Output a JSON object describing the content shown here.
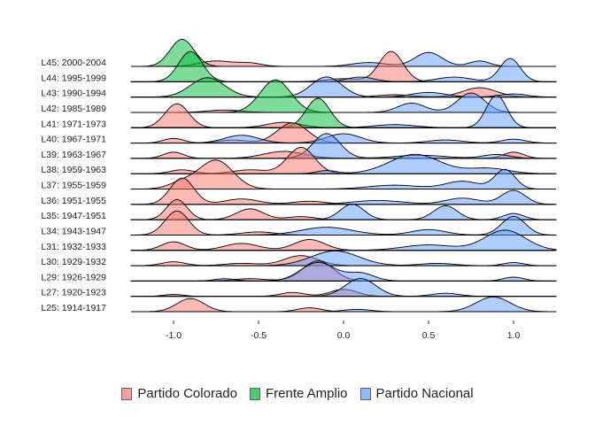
{
  "chart_data": {
    "type": "ridgeline",
    "title": "",
    "xlabel": "",
    "ylabel": "",
    "xlim": [
      -1.25,
      1.25
    ],
    "x_ticks": [
      -1.0,
      -0.5,
      0.0,
      0.5,
      1.0
    ],
    "x_tick_labels": [
      "-1.0",
      "-0.5",
      "0.0",
      "0.5",
      "1.0"
    ],
    "grid": false,
    "legend_position": "bottom",
    "series": [
      {
        "name": "Partido Colorado",
        "color": "#F8766D"
      },
      {
        "name": "Frente Amplio",
        "color": "#00BA38"
      },
      {
        "name": "Partido Nacional",
        "color": "#619CFF"
      }
    ],
    "rows": [
      {
        "label": "L25: 1914-1917",
        "densities": [
          {
            "party": "Partido Colorado",
            "peaks": [
              [
                -0.9,
                0.08,
                0.85
              ],
              [
                -0.2,
                0.07,
                0.25
              ]
            ]
          },
          {
            "party": "Partido Nacional",
            "peaks": [
              [
                0.08,
                0.08,
                0.15
              ],
              [
                0.88,
                0.1,
                0.95
              ]
            ]
          }
        ]
      },
      {
        "label": "L27: 1920-1923",
        "densities": [
          {
            "party": "Partido Colorado",
            "peaks": [
              [
                -1.0,
                0.06,
                0.12
              ],
              [
                -0.3,
                0.07,
                0.25
              ],
              [
                0.0,
                0.08,
                0.45
              ]
            ]
          },
          {
            "party": "Partido Nacional",
            "peaks": [
              [
                0.1,
                0.09,
                1.15
              ],
              [
                0.6,
                0.08,
                0.2
              ]
            ]
          }
        ]
      },
      {
        "label": "L29: 1926-1929",
        "densities": [
          {
            "party": "Partido Colorado",
            "peaks": [
              [
                -0.15,
                0.09,
                1.3
              ],
              [
                -0.55,
                0.1,
                0.15
              ]
            ]
          },
          {
            "party": "Partido Nacional",
            "peaks": [
              [
                -0.15,
                0.1,
                1.2
              ],
              [
                0.1,
                0.08,
                0.5
              ],
              [
                1.0,
                0.06,
                0.25
              ],
              [
                -0.7,
                0.06,
                0.15
              ]
            ]
          }
        ]
      },
      {
        "label": "L30: 1929-1932",
        "densities": [
          {
            "party": "Partido Colorado",
            "peaks": [
              [
                -1.0,
                0.07,
                0.25
              ],
              [
                -0.6,
                0.1,
                0.15
              ],
              [
                -0.25,
                0.1,
                0.65
              ]
            ]
          },
          {
            "party": "Partido Nacional",
            "peaks": [
              [
                -0.05,
                0.14,
                0.95
              ],
              [
                0.55,
                0.1,
                0.15
              ],
              [
                1.0,
                0.06,
                0.2
              ]
            ]
          }
        ]
      },
      {
        "label": "L31: 1932-1933",
        "densities": [
          {
            "party": "Partido Colorado",
            "peaks": [
              [
                -1.0,
                0.07,
                0.55
              ],
              [
                -0.6,
                0.1,
                0.45
              ],
              [
                -0.2,
                0.09,
                0.7
              ]
            ]
          },
          {
            "party": "Partido Nacional",
            "peaks": [
              [
                0.5,
                0.15,
                0.35
              ],
              [
                0.95,
                0.12,
                1.3
              ]
            ]
          }
        ]
      },
      {
        "label": "L34: 1943-1947",
        "densities": [
          {
            "party": "Partido Colorado",
            "peaks": [
              [
                -0.98,
                0.07,
                1.55
              ],
              [
                -0.5,
                0.1,
                0.2
              ]
            ]
          },
          {
            "party": "Partido Nacional",
            "peaks": [
              [
                -0.1,
                0.15,
                0.5
              ],
              [
                0.5,
                0.1,
                0.35
              ],
              [
                1.0,
                0.07,
                1.2
              ]
            ]
          }
        ]
      },
      {
        "label": "L35: 1947-1951",
        "densities": [
          {
            "party": "Partido Colorado",
            "peaks": [
              [
                -0.98,
                0.06,
                1.3
              ],
              [
                -0.55,
                0.08,
                0.7
              ],
              [
                -0.25,
                0.08,
                0.2
              ]
            ]
          },
          {
            "party": "Partido Nacional",
            "peaks": [
              [
                0.05,
                0.07,
                1.0
              ],
              [
                0.6,
                0.07,
                0.9
              ],
              [
                1.0,
                0.06,
                0.4
              ]
            ]
          }
        ]
      },
      {
        "label": "L36: 1951-1955",
        "densities": [
          {
            "party": "Partido Colorado",
            "peaks": [
              [
                -0.95,
                0.07,
                1.7
              ],
              [
                -0.6,
                0.1,
                0.35
              ],
              [
                -0.2,
                0.1,
                0.2
              ]
            ]
          },
          {
            "party": "Partido Nacional",
            "peaks": [
              [
                0.2,
                0.15,
                0.25
              ],
              [
                0.7,
                0.1,
                0.4
              ],
              [
                1.0,
                0.07,
                0.9
              ]
            ]
          }
        ]
      },
      {
        "label": "L37: 1955-1959",
        "densities": [
          {
            "party": "Partido Colorado",
            "peaks": [
              [
                -0.75,
                0.1,
                1.85
              ],
              [
                -0.95,
                0.08,
                0.4
              ]
            ]
          },
          {
            "party": "Partido Nacional",
            "peaks": [
              [
                0.3,
                0.15,
                0.25
              ],
              [
                0.7,
                0.1,
                0.5
              ],
              [
                0.95,
                0.06,
                1.25
              ]
            ]
          }
        ]
      },
      {
        "label": "L38: 1959-1963",
        "densities": [
          {
            "party": "Partido Colorado",
            "peaks": [
              [
                -0.25,
                0.08,
                1.7
              ],
              [
                -0.95,
                0.07,
                0.25
              ],
              [
                -0.55,
                0.1,
                0.25
              ]
            ]
          },
          {
            "party": "Partido Nacional",
            "peaks": [
              [
                0.42,
                0.15,
                1.25
              ],
              [
                0.85,
                0.12,
                0.35
              ],
              [
                -0.1,
                0.06,
                0.2
              ]
            ]
          }
        ]
      },
      {
        "label": "L39: 1963-1967",
        "densities": [
          {
            "party": "Partido Colorado",
            "peaks": [
              [
                -1.0,
                0.06,
                0.4
              ],
              [
                -0.35,
                0.12,
                0.45
              ],
              [
                1.0,
                0.06,
                0.4
              ]
            ]
          },
          {
            "party": "Partido Nacional",
            "peaks": [
              [
                -0.1,
                0.08,
                1.6
              ],
              [
                0.45,
                0.15,
                0.2
              ],
              [
                0.9,
                0.08,
                0.25
              ]
            ]
          }
        ]
      },
      {
        "label": "L40: 1967-1971",
        "densities": [
          {
            "party": "Partido Colorado",
            "peaks": [
              [
                -0.3,
                0.09,
                1.3
              ],
              [
                -1.0,
                0.06,
                0.3
              ],
              [
                -0.65,
                0.08,
                0.2
              ]
            ]
          },
          {
            "party": "Partido Nacional",
            "peaks": [
              [
                -0.6,
                0.1,
                0.5
              ],
              [
                0.0,
                0.1,
                0.6
              ],
              [
                0.6,
                0.1,
                0.2
              ],
              [
                1.0,
                0.07,
                0.25
              ]
            ]
          }
        ]
      },
      {
        "label": "L41: 1971-1973",
        "densities": [
          {
            "party": "Partido Colorado",
            "peaks": [
              [
                -0.98,
                0.07,
                1.55
              ],
              [
                -0.35,
                0.1,
                0.35
              ]
            ]
          },
          {
            "party": "Frente Amplio",
            "peaks": [
              [
                -0.15,
                0.07,
                1.9
              ]
            ]
          },
          {
            "party": "Partido Nacional",
            "peaks": [
              [
                0.3,
                0.12,
                0.2
              ],
              [
                0.9,
                0.06,
                2.1
              ]
            ]
          }
        ]
      },
      {
        "label": "L42: 1985-1989",
        "densities": [
          {
            "party": "Partido Colorado",
            "peaks": [
              [
                -0.7,
                0.1,
                0.15
              ]
            ]
          },
          {
            "party": "Frente Amplio",
            "peaks": [
              [
                -0.4,
                0.09,
                2.1
              ]
            ]
          },
          {
            "party": "Partido Nacional",
            "peaks": [
              [
                0.4,
                0.08,
                0.6
              ],
              [
                0.75,
                0.08,
                1.25
              ]
            ]
          }
        ]
      },
      {
        "label": "L43: 1990-1994",
        "densities": [
          {
            "party": "Partido Colorado",
            "peaks": [
              [
                0.8,
                0.1,
                0.6
              ],
              [
                0.3,
                0.1,
                0.15
              ]
            ]
          },
          {
            "party": "Frente Amplio",
            "peaks": [
              [
                -0.8,
                0.1,
                1.25
              ]
            ]
          },
          {
            "party": "Partido Nacional",
            "peaks": [
              [
                -0.1,
                0.09,
                1.3
              ],
              [
                0.5,
                0.1,
                0.3
              ],
              [
                1.0,
                0.08,
                0.2
              ]
            ]
          }
        ]
      },
      {
        "label": "L44: 1995-1999",
        "densities": [
          {
            "party": "Partido Colorado",
            "peaks": [
              [
                0.28,
                0.07,
                1.95
              ],
              [
                0.0,
                0.1,
                0.2
              ]
            ]
          },
          {
            "party": "Frente Amplio",
            "peaks": [
              [
                -0.9,
                0.07,
                1.95
              ]
            ]
          },
          {
            "party": "Partido Nacional",
            "peaks": [
              [
                0.1,
                0.08,
                0.3
              ],
              [
                0.65,
                0.1,
                0.3
              ],
              [
                0.98,
                0.06,
                1.5
              ]
            ]
          }
        ]
      },
      {
        "label": "L45: 2000-2004",
        "densities": [
          {
            "party": "Partido Colorado",
            "peaks": [
              [
                -0.75,
                0.1,
                0.35
              ],
              [
                -0.55,
                0.07,
                0.2
              ]
            ]
          },
          {
            "party": "Frente Amplio",
            "peaks": [
              [
                -0.95,
                0.07,
                1.75
              ]
            ]
          },
          {
            "party": "Partido Nacional",
            "peaks": [
              [
                0.15,
                0.1,
                0.25
              ],
              [
                0.5,
                0.08,
                0.9
              ],
              [
                0.8,
                0.06,
                0.35
              ]
            ]
          }
        ]
      }
    ]
  }
}
